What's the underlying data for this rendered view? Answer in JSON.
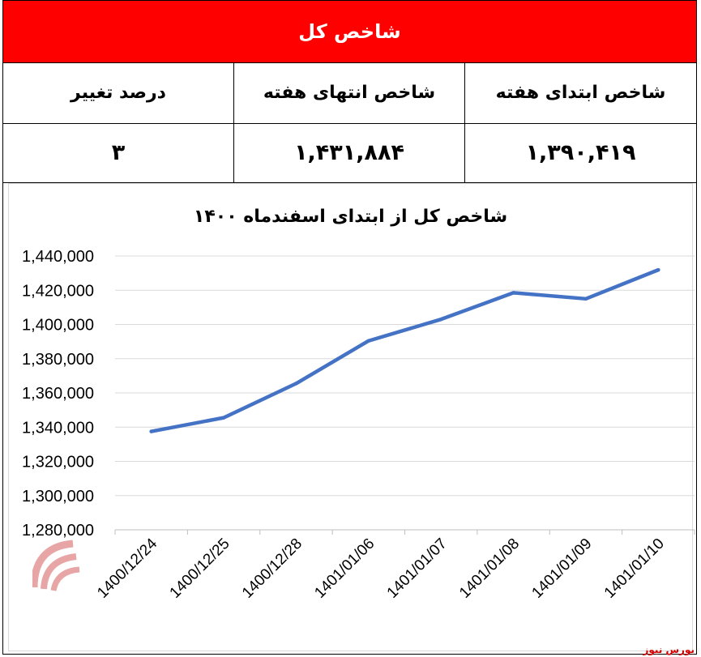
{
  "header": {
    "title": "شاخص کل"
  },
  "table": {
    "columns": [
      "شاخص ابتدای هفته",
      "شاخص انتهای هفته",
      "درصد تغییر"
    ],
    "values": [
      "۱,۳۹۰,۴۱۹",
      "۱,۴۳۱,۸۸۴",
      "۳"
    ]
  },
  "colors": {
    "header_bg": "#ff0000",
    "line": "#4472c4",
    "grid": "#d9d9d9"
  },
  "brand": {
    "watermark_text": "بورس نیوز",
    "footer_text": "بورس نیوز"
  },
  "chart_data": {
    "type": "line",
    "title": "شاخص کل از ابتدای اسفندماه ۱۴۰۰",
    "categories": [
      "1400/12/24",
      "1400/12/25",
      "1400/12/28",
      "1401/01/06",
      "1401/01/07",
      "1401/01/08",
      "1401/01/09",
      "1401/01/10"
    ],
    "y_ticks": [
      "1,280,000",
      "1,300,000",
      "1,320,000",
      "1,340,000",
      "1,360,000",
      "1,380,000",
      "1,400,000",
      "1,420,000",
      "1,440,000"
    ],
    "series": [
      {
        "values": [
          1337500,
          1345500,
          1365500,
          1390419,
          1403000,
          1418500,
          1415000,
          1431884
        ]
      }
    ],
    "ylim": [
      1280000,
      1440000
    ],
    "grid": true,
    "legend": "none"
  }
}
